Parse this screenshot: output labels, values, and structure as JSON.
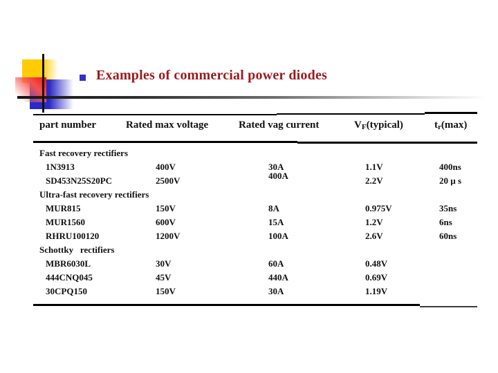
{
  "slide": {
    "title": "Examples of commercial power diodes",
    "colors": {
      "title_text": "#9a1b1f",
      "bullet": "#3232c4",
      "logo_yellow": "#ffcc05",
      "logo_red": "#f01414",
      "logo_blue": "#2a2ac8",
      "rule_dark": "#161616",
      "table_text": "#101010"
    }
  },
  "table": {
    "headers": [
      {
        "text": "part number"
      },
      {
        "text": "Rated max voltage"
      },
      {
        "text": "Rated vag current"
      },
      {
        "prefix": "V",
        "sub": "F",
        "suffix": "(typical)"
      },
      {
        "prefix": "t",
        "sub": "r",
        "suffix": "(max)"
      }
    ],
    "rows": [
      {
        "type": "section",
        "part": "Fast recovery rectifiers",
        "voltage": "",
        "current": "",
        "vf": "",
        "tr": ""
      },
      {
        "type": "part",
        "part": "1N3913",
        "voltage": "400V",
        "current": "30A",
        "vf": "1.1V",
        "tr": "400ns"
      },
      {
        "type": "part",
        "part": "SD453N25S20PC",
        "voltage": "2500V",
        "current": "400A",
        "vf": "2.2V",
        "tr": "20 µ s"
      },
      {
        "type": "section",
        "part": "Ultra-fast recovery rectifiers",
        "voltage": "",
        "current": "",
        "vf": "",
        "tr": ""
      },
      {
        "type": "part",
        "part": "MUR815",
        "voltage": "150V",
        "current": "8A",
        "vf": "0.975V",
        "tr": "35ns"
      },
      {
        "type": "part",
        "part": "MUR1560",
        "voltage": "600V",
        "current": "15A",
        "vf": "1.2V",
        "tr": "6ns"
      },
      {
        "type": "part",
        "part": "RHRU100120",
        "voltage": "1200V",
        "current": "100A",
        "vf": "2.6V",
        "tr": "60ns"
      },
      {
        "type": "section",
        "part": "Schottky   rectifiers",
        "voltage": "",
        "current": "",
        "vf": "",
        "tr": ""
      },
      {
        "type": "part",
        "part": "MBR6030L",
        "voltage": "30V",
        "current": "60A",
        "vf": "0.48V",
        "tr": ""
      },
      {
        "type": "part",
        "part": "444CNQ045",
        "voltage": "45V",
        "current": "440A",
        "vf": "0.69V",
        "tr": ""
      },
      {
        "type": "part",
        "part": "30CPQ150",
        "voltage": "150V",
        "current": "30A",
        "vf": "1.19V",
        "tr": ""
      }
    ]
  }
}
